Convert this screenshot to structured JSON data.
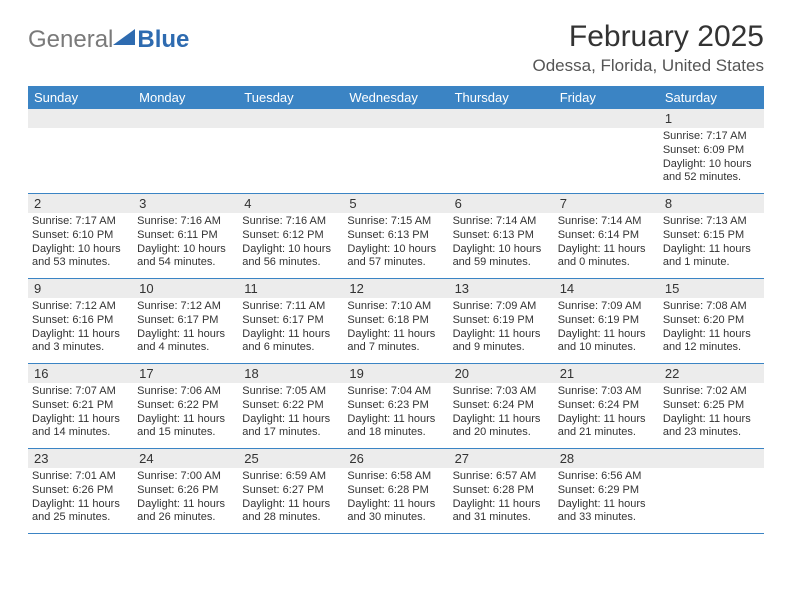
{
  "brand": {
    "word1": "General",
    "word2": "Blue"
  },
  "title": "February 2025",
  "location": "Odessa, Florida, United States",
  "colors": {
    "header_bar": "#3b84c4",
    "daynum_bg": "#ececec",
    "text": "#333333",
    "logo_gray": "#7a7a7a",
    "logo_blue": "#2e6bb0"
  },
  "days_of_week": [
    "Sunday",
    "Monday",
    "Tuesday",
    "Wednesday",
    "Thursday",
    "Friday",
    "Saturday"
  ],
  "weeks": [
    [
      {
        "n": "",
        "sunrise": "",
        "sunset": "",
        "day1": "",
        "day2": ""
      },
      {
        "n": "",
        "sunrise": "",
        "sunset": "",
        "day1": "",
        "day2": ""
      },
      {
        "n": "",
        "sunrise": "",
        "sunset": "",
        "day1": "",
        "day2": ""
      },
      {
        "n": "",
        "sunrise": "",
        "sunset": "",
        "day1": "",
        "day2": ""
      },
      {
        "n": "",
        "sunrise": "",
        "sunset": "",
        "day1": "",
        "day2": ""
      },
      {
        "n": "",
        "sunrise": "",
        "sunset": "",
        "day1": "",
        "day2": ""
      },
      {
        "n": "1",
        "sunrise": "Sunrise: 7:17 AM",
        "sunset": "Sunset: 6:09 PM",
        "day1": "Daylight: 10 hours",
        "day2": "and 52 minutes."
      }
    ],
    [
      {
        "n": "2",
        "sunrise": "Sunrise: 7:17 AM",
        "sunset": "Sunset: 6:10 PM",
        "day1": "Daylight: 10 hours",
        "day2": "and 53 minutes."
      },
      {
        "n": "3",
        "sunrise": "Sunrise: 7:16 AM",
        "sunset": "Sunset: 6:11 PM",
        "day1": "Daylight: 10 hours",
        "day2": "and 54 minutes."
      },
      {
        "n": "4",
        "sunrise": "Sunrise: 7:16 AM",
        "sunset": "Sunset: 6:12 PM",
        "day1": "Daylight: 10 hours",
        "day2": "and 56 minutes."
      },
      {
        "n": "5",
        "sunrise": "Sunrise: 7:15 AM",
        "sunset": "Sunset: 6:13 PM",
        "day1": "Daylight: 10 hours",
        "day2": "and 57 minutes."
      },
      {
        "n": "6",
        "sunrise": "Sunrise: 7:14 AM",
        "sunset": "Sunset: 6:13 PM",
        "day1": "Daylight: 10 hours",
        "day2": "and 59 minutes."
      },
      {
        "n": "7",
        "sunrise": "Sunrise: 7:14 AM",
        "sunset": "Sunset: 6:14 PM",
        "day1": "Daylight: 11 hours",
        "day2": "and 0 minutes."
      },
      {
        "n": "8",
        "sunrise": "Sunrise: 7:13 AM",
        "sunset": "Sunset: 6:15 PM",
        "day1": "Daylight: 11 hours",
        "day2": "and 1 minute."
      }
    ],
    [
      {
        "n": "9",
        "sunrise": "Sunrise: 7:12 AM",
        "sunset": "Sunset: 6:16 PM",
        "day1": "Daylight: 11 hours",
        "day2": "and 3 minutes."
      },
      {
        "n": "10",
        "sunrise": "Sunrise: 7:12 AM",
        "sunset": "Sunset: 6:17 PM",
        "day1": "Daylight: 11 hours",
        "day2": "and 4 minutes."
      },
      {
        "n": "11",
        "sunrise": "Sunrise: 7:11 AM",
        "sunset": "Sunset: 6:17 PM",
        "day1": "Daylight: 11 hours",
        "day2": "and 6 minutes."
      },
      {
        "n": "12",
        "sunrise": "Sunrise: 7:10 AM",
        "sunset": "Sunset: 6:18 PM",
        "day1": "Daylight: 11 hours",
        "day2": "and 7 minutes."
      },
      {
        "n": "13",
        "sunrise": "Sunrise: 7:09 AM",
        "sunset": "Sunset: 6:19 PM",
        "day1": "Daylight: 11 hours",
        "day2": "and 9 minutes."
      },
      {
        "n": "14",
        "sunrise": "Sunrise: 7:09 AM",
        "sunset": "Sunset: 6:19 PM",
        "day1": "Daylight: 11 hours",
        "day2": "and 10 minutes."
      },
      {
        "n": "15",
        "sunrise": "Sunrise: 7:08 AM",
        "sunset": "Sunset: 6:20 PM",
        "day1": "Daylight: 11 hours",
        "day2": "and 12 minutes."
      }
    ],
    [
      {
        "n": "16",
        "sunrise": "Sunrise: 7:07 AM",
        "sunset": "Sunset: 6:21 PM",
        "day1": "Daylight: 11 hours",
        "day2": "and 14 minutes."
      },
      {
        "n": "17",
        "sunrise": "Sunrise: 7:06 AM",
        "sunset": "Sunset: 6:22 PM",
        "day1": "Daylight: 11 hours",
        "day2": "and 15 minutes."
      },
      {
        "n": "18",
        "sunrise": "Sunrise: 7:05 AM",
        "sunset": "Sunset: 6:22 PM",
        "day1": "Daylight: 11 hours",
        "day2": "and 17 minutes."
      },
      {
        "n": "19",
        "sunrise": "Sunrise: 7:04 AM",
        "sunset": "Sunset: 6:23 PM",
        "day1": "Daylight: 11 hours",
        "day2": "and 18 minutes."
      },
      {
        "n": "20",
        "sunrise": "Sunrise: 7:03 AM",
        "sunset": "Sunset: 6:24 PM",
        "day1": "Daylight: 11 hours",
        "day2": "and 20 minutes."
      },
      {
        "n": "21",
        "sunrise": "Sunrise: 7:03 AM",
        "sunset": "Sunset: 6:24 PM",
        "day1": "Daylight: 11 hours",
        "day2": "and 21 minutes."
      },
      {
        "n": "22",
        "sunrise": "Sunrise: 7:02 AM",
        "sunset": "Sunset: 6:25 PM",
        "day1": "Daylight: 11 hours",
        "day2": "and 23 minutes."
      }
    ],
    [
      {
        "n": "23",
        "sunrise": "Sunrise: 7:01 AM",
        "sunset": "Sunset: 6:26 PM",
        "day1": "Daylight: 11 hours",
        "day2": "and 25 minutes."
      },
      {
        "n": "24",
        "sunrise": "Sunrise: 7:00 AM",
        "sunset": "Sunset: 6:26 PM",
        "day1": "Daylight: 11 hours",
        "day2": "and 26 minutes."
      },
      {
        "n": "25",
        "sunrise": "Sunrise: 6:59 AM",
        "sunset": "Sunset: 6:27 PM",
        "day1": "Daylight: 11 hours",
        "day2": "and 28 minutes."
      },
      {
        "n": "26",
        "sunrise": "Sunrise: 6:58 AM",
        "sunset": "Sunset: 6:28 PM",
        "day1": "Daylight: 11 hours",
        "day2": "and 30 minutes."
      },
      {
        "n": "27",
        "sunrise": "Sunrise: 6:57 AM",
        "sunset": "Sunset: 6:28 PM",
        "day1": "Daylight: 11 hours",
        "day2": "and 31 minutes."
      },
      {
        "n": "28",
        "sunrise": "Sunrise: 6:56 AM",
        "sunset": "Sunset: 6:29 PM",
        "day1": "Daylight: 11 hours",
        "day2": "and 33 minutes."
      },
      {
        "n": "",
        "sunrise": "",
        "sunset": "",
        "day1": "",
        "day2": ""
      }
    ]
  ]
}
